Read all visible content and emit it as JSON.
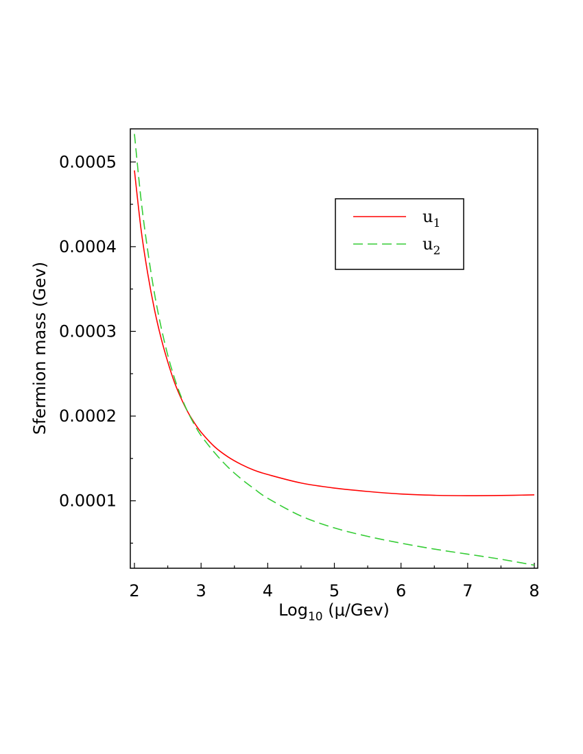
{
  "chart_data": {
    "type": "line",
    "xlabel": {
      "main": "Log",
      "sub": "10",
      "rest": " (μ/Gev)"
    },
    "ylabel": "Sfermion mass (Gev)",
    "xlim": [
      2,
      8
    ],
    "ylim": [
      2.2e-05,
      0.000535
    ],
    "x_ticks": [
      2,
      3,
      4,
      5,
      6,
      7,
      8
    ],
    "x_tick_labels": [
      "2",
      "3",
      "4",
      "5",
      "6",
      "7",
      "8"
    ],
    "y_ticks": [
      0.0001,
      0.0002,
      0.0003,
      0.0004,
      0.0005
    ],
    "y_tick_labels": [
      "0.0001",
      "0.0002",
      "0.0003",
      "0.0004",
      "0.0005"
    ],
    "legend_position": "top-right",
    "series": [
      {
        "name": {
          "main": "u",
          "sub": "1"
        },
        "color": "#ff0000",
        "dash": "solid",
        "x": [
          2.0,
          2.1,
          2.2,
          2.3,
          2.4,
          2.5,
          2.6,
          2.7,
          2.8,
          2.9,
          3.0,
          3.2,
          3.4,
          3.6,
          3.8,
          4.0,
          4.5,
          5.0,
          5.5,
          6.0,
          6.5,
          7.0,
          7.5,
          8.0
        ],
        "y": [
          0.00049,
          0.00042,
          0.000368,
          0.000326,
          0.000292,
          0.000264,
          0.00024,
          0.000221,
          0.000205,
          0.000192,
          0.000181,
          0.000164,
          0.000152,
          0.000143,
          0.000136,
          0.000131,
          0.000121,
          0.000115,
          0.000111,
          0.000108,
          0.0001065,
          0.000106,
          0.0001063,
          0.000107
        ]
      },
      {
        "name": {
          "main": "u",
          "sub": "2"
        },
        "color": "#33cc33",
        "dash": "dashed",
        "x": [
          2.0,
          2.1,
          2.2,
          2.3,
          2.4,
          2.5,
          2.6,
          2.7,
          2.8,
          2.9,
          3.0,
          3.2,
          3.4,
          3.6,
          3.8,
          4.0,
          4.5,
          5.0,
          5.5,
          6.0,
          6.5,
          7.0,
          7.5,
          8.0
        ],
        "y": [
          0.000533,
          0.000455,
          0.000395,
          0.000345,
          0.000305,
          0.000272,
          0.000245,
          0.000223,
          0.000205,
          0.00019,
          0.000177,
          0.000157,
          0.00014,
          0.000126,
          0.000114,
          0.000103,
          8.2e-05,
          6.8e-05,
          5.8e-05,
          5e-05,
          4.3e-05,
          3.7e-05,
          3.1e-05,
          2.4e-05
        ]
      }
    ]
  }
}
